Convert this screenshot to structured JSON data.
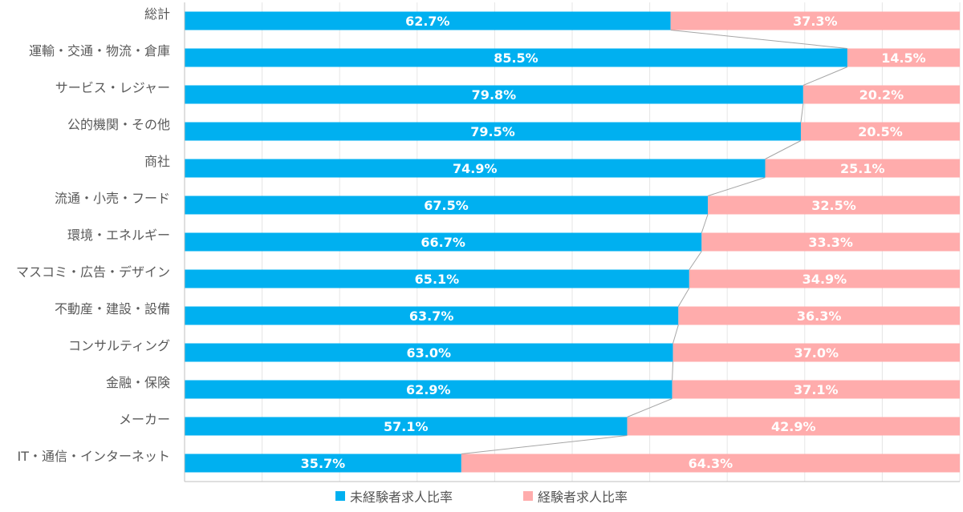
{
  "chart_data": {
    "type": "bar",
    "orientation": "horizontal",
    "stacked": "percent",
    "categories": [
      "総計",
      "運輸・交通・物流・倉庫",
      "サービス・レジャー",
      "公的機関・その他",
      "商社",
      "流通・小売・フード",
      "環境・エネルギー",
      "マスコミ・広告・デザイン",
      "不動産・建設・設備",
      "コンサルティング",
      "金融・保険",
      "メーカー",
      "IT・通信・インターネット"
    ],
    "series": [
      {
        "name": "未経験者求人比率",
        "color": "#00b0f0",
        "values": [
          62.7,
          85.5,
          79.8,
          79.5,
          74.9,
          67.5,
          66.7,
          65.1,
          63.7,
          63.0,
          62.9,
          57.1,
          35.7
        ],
        "labels": [
          "62.7%",
          "85.5%",
          "79.8%",
          "79.5%",
          "74.9%",
          "67.5%",
          "66.7%",
          "65.1%",
          "63.7%",
          "63.0%",
          "62.9%",
          "57.1%",
          "35.7%"
        ]
      },
      {
        "name": "経験者求人比率",
        "color": "#ffacac",
        "values": [
          37.3,
          14.5,
          20.2,
          20.5,
          25.1,
          32.5,
          33.3,
          34.9,
          36.3,
          37.0,
          37.1,
          42.9,
          64.3
        ],
        "labels": [
          "37.3%",
          "14.5%",
          "20.2%",
          "20.5%",
          "25.1%",
          "32.5%",
          "33.3%",
          "34.9%",
          "36.3%",
          "37.0%",
          "37.1%",
          "42.9%",
          "64.3%"
        ]
      }
    ],
    "xlim": [
      0,
      100
    ],
    "grid": true,
    "series_lines": true,
    "legend": "bottom",
    "label_color": "#ffffff"
  }
}
